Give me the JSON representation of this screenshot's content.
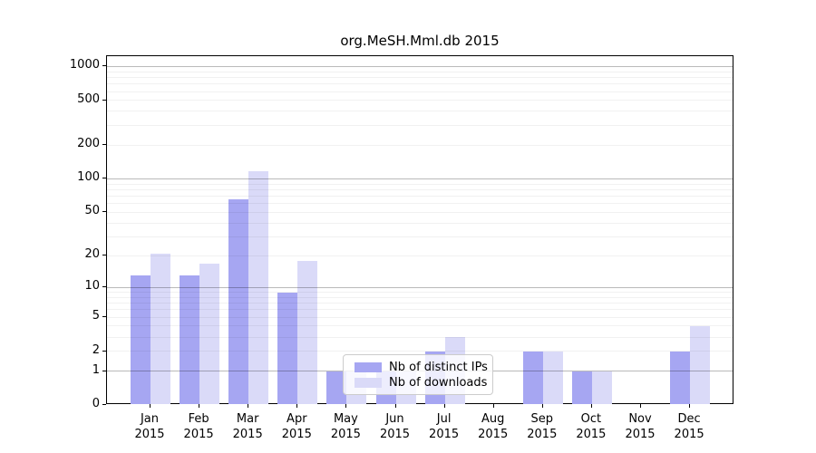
{
  "figure": {
    "title": "org.MeSH.Mml.db 2015"
  },
  "chart_data": {
    "type": "bar",
    "title": "org.MeSH.Mml.db 2015",
    "categories": [
      "Jan",
      "Feb",
      "Mar",
      "Apr",
      "May",
      "Jun",
      "Jul",
      "Aug",
      "Sep",
      "Oct",
      "Nov",
      "Dec"
    ],
    "category_year": "2015",
    "series": [
      {
        "name": "Nb of distinct IPs",
        "color": "#a6a6f2",
        "values": [
          13,
          13,
          65,
          9,
          1,
          1,
          2,
          0,
          2,
          1,
          0,
          2
        ]
      },
      {
        "name": "Nb of downloads",
        "color": "#dadaf8",
        "values": [
          21,
          17,
          118,
          18,
          1,
          1,
          3,
          0,
          2,
          1,
          0,
          4
        ]
      }
    ],
    "xlabel": "",
    "ylabel": "",
    "yticks": [
      0,
      1,
      2,
      5,
      10,
      20,
      50,
      100,
      200,
      500,
      1000
    ],
    "yscale": "log10(value+1)",
    "ylim": [
      0,
      1200
    ],
    "grid": true,
    "grid_major_at": [
      1,
      10,
      100,
      1000
    ],
    "legend_position": "lower-center"
  }
}
